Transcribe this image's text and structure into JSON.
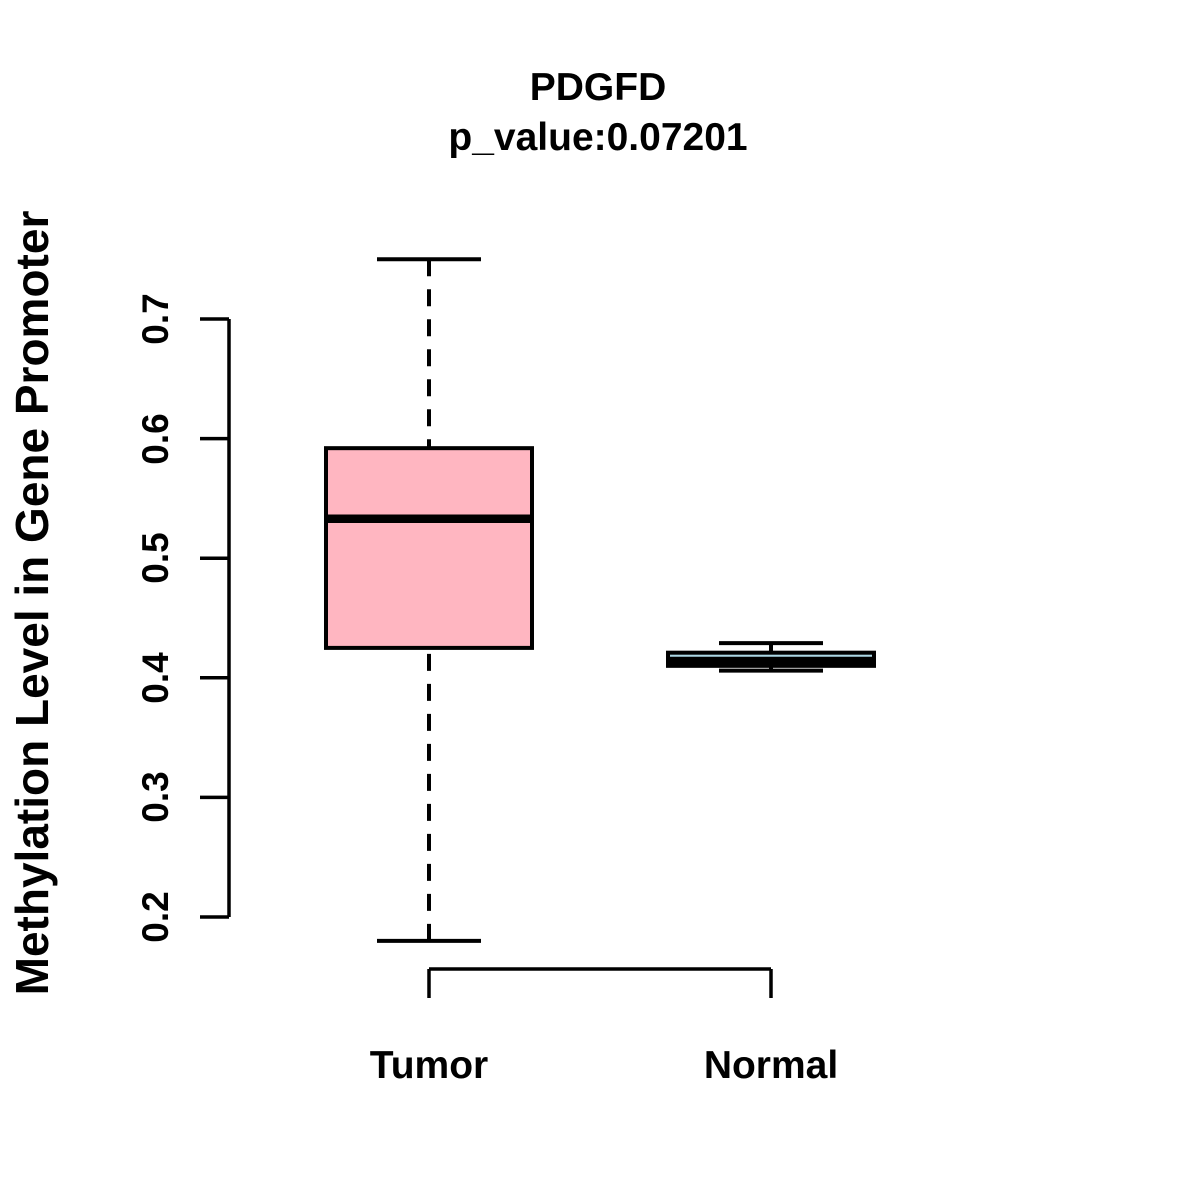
{
  "title": "PDGFD",
  "subtitle": "p_value:0.07201",
  "ylabel": "Methylation Level in Gene Promoter",
  "colors": {
    "background": "#FFFFFF",
    "line": "#000000",
    "text": "#000000",
    "tumor_fill": "#FFB6C1",
    "normal_fill": "#ADD8E6"
  },
  "chart_data": {
    "type": "boxplot",
    "title": "PDGFD",
    "subtitle": "p_value:0.07201",
    "xlabel": "",
    "ylabel": "Methylation Level in Gene Promoter",
    "categories": [
      "Tumor",
      "Normal"
    ],
    "yticks": [
      0.2,
      0.3,
      0.4,
      0.5,
      0.6,
      0.7
    ],
    "ytick_labels": [
      "0.2",
      "0.3",
      "0.4",
      "0.5",
      "0.6",
      "0.7"
    ],
    "ylim": [
      0.18,
      0.755
    ],
    "grid": false,
    "legend": "none",
    "whisker_style": "dashed",
    "series": [
      {
        "name": "Tumor",
        "whisker_low": 0.18,
        "q1": 0.425,
        "median": 0.533,
        "q3": 0.592,
        "whisker_high": 0.75,
        "fill": "#FFB6C1"
      },
      {
        "name": "Normal",
        "whisker_low": 0.406,
        "q1": 0.41,
        "median": 0.414,
        "q3": 0.421,
        "whisker_high": 0.429,
        "fill": "#ADD8E6"
      }
    ]
  }
}
